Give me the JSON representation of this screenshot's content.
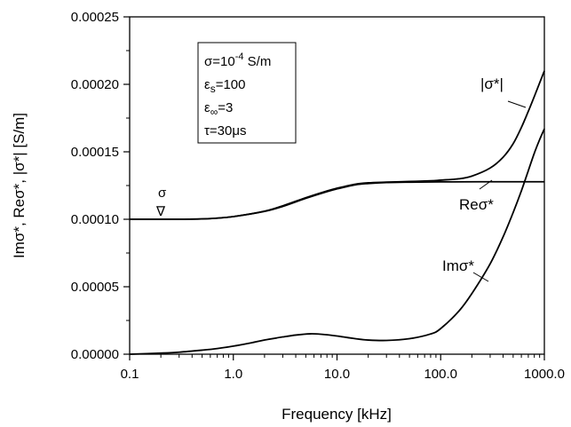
{
  "chart_data": {
    "type": "line",
    "xlabel": "Frequency [kHz]",
    "ylabel": "Imσ*, Reσ*, |σ*| [S/m]",
    "x_scale": "log",
    "xlim": [
      0.1,
      1000
    ],
    "ylim": [
      0,
      0.00025
    ],
    "x_ticks": [
      0.1,
      1,
      10,
      100,
      1000
    ],
    "x_tick_labels": [
      "0.1",
      "1.0",
      "10.0",
      "100.0",
      "1000.0"
    ],
    "y_ticks": [
      0,
      5e-05,
      0.0001,
      0.00015,
      0.0002,
      0.00025
    ],
    "y_tick_labels": [
      "0.00000",
      "0.00005",
      "0.00010",
      "0.00015",
      "0.00020",
      "0.00025"
    ],
    "grid": false,
    "parameters_box": [
      "σ=10-4 S/m",
      "εs=100",
      "ε∞=3",
      "τ=30μs"
    ],
    "series": [
      {
        "name": "|σ*|",
        "x": [
          0.1,
          0.3,
          0.6,
          1.0,
          2.0,
          3.0,
          5.0,
          8.0,
          10.0,
          15.0,
          20.0,
          30.0,
          50.0,
          80.0,
          100.0,
          150.0,
          200.0,
          300.0,
          400.0,
          500.0,
          600.0,
          700.0,
          800.0,
          900.0,
          1000.0
        ],
        "values": [
          0.0001,
          0.0001,
          0.0001005,
          0.000102,
          0.000106,
          0.00011,
          0.000116,
          0.000121,
          0.000123,
          0.000126,
          0.000127,
          0.0001275,
          0.000128,
          0.0001285,
          0.000129,
          0.00013,
          0.000132,
          0.000138,
          0.000146,
          0.000156,
          0.000168,
          0.00018,
          0.000191,
          0.000201,
          0.00021
        ]
      },
      {
        "name": "Reσ*",
        "x": [
          0.1,
          0.3,
          0.6,
          1.0,
          2.0,
          3.0,
          5.0,
          8.0,
          10.0,
          15.0,
          20.0,
          30.0,
          50.0,
          100.0,
          300.0,
          1000.0
        ],
        "values": [
          0.0001,
          0.0001,
          0.0001005,
          0.000102,
          0.0001058,
          0.0001095,
          0.0001155,
          0.0001205,
          0.0001225,
          0.0001255,
          0.0001265,
          0.0001272,
          0.0001275,
          0.0001277,
          0.0001278,
          0.0001278
        ]
      },
      {
        "name": "Imσ*",
        "x": [
          0.1,
          0.2,
          0.3,
          0.5,
          0.7,
          1.0,
          1.5,
          2.0,
          3.0,
          4.0,
          5.5,
          7.0,
          10.0,
          15.0,
          20.0,
          30.0,
          50.0,
          80.0,
          100.0,
          150.0,
          200.0,
          300.0,
          400.0,
          500.0,
          600.0,
          700.0,
          800.0,
          900.0,
          1000.0
        ],
        "values": [
          0.0,
          8e-07,
          1.5e-06,
          3e-06,
          4.2e-06,
          6e-06,
          8.5e-06,
          1.05e-05,
          1.28e-05,
          1.42e-05,
          1.51e-05,
          1.48e-05,
          1.35e-05,
          1.15e-05,
          1.05e-05,
          1.02e-05,
          1.15e-05,
          1.5e-05,
          1.9e-05,
          3.2e-05,
          4.5e-05,
          6.7e-05,
          8.7e-05,
          0.000105,
          0.000121,
          0.000136,
          0.000149,
          0.000159,
          0.000167
        ]
      }
    ],
    "annotations": [
      {
        "text": "σ",
        "marker": "∇",
        "x": 0.18,
        "y": 0.0001
      }
    ]
  }
}
